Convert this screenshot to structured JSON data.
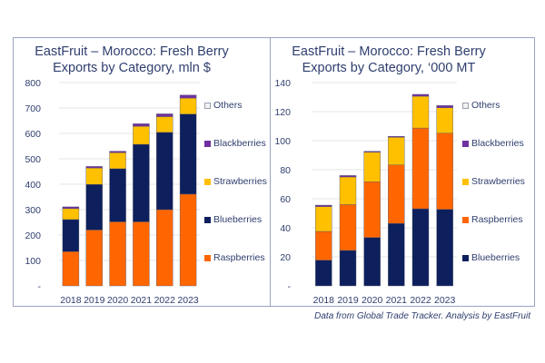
{
  "colors": {
    "Raspberries": "#ff6600",
    "Blueberries": "#0d1f5c",
    "Strawberries": "#ffc000",
    "Blackberries": "#7030a0",
    "Others": "#f2f2f2",
    "text": "#2f3e6e",
    "grid": "#e6e6e6"
  },
  "source_note": "Data from Global Trade Tracker. Analysis by EastFruit",
  "chart_data": [
    {
      "type": "bar",
      "stacked": true,
      "title": "EastFruit – Morocco: Fresh Berry Exports by Category, mln $",
      "title_lines": [
        "EastFruit – Morocco: Fresh Berry",
        "Exports by Category, mln $"
      ],
      "xlabel": "",
      "ylabel": "",
      "categories": [
        "2018",
        "2019",
        "2020",
        "2021",
        "2022",
        "2023"
      ],
      "ylim": [
        0,
        800
      ],
      "yticks": [
        0,
        100,
        200,
        300,
        400,
        500,
        600,
        700,
        800
      ],
      "ytick_labels": [
        "-",
        "100",
        "200",
        "300",
        "400",
        "500",
        "600",
        "700",
        "800"
      ],
      "grid": true,
      "legend_position": "right",
      "legend": [
        "Others",
        "Blackberries",
        "Strawberries",
        "Blueberries",
        "Raspberries"
      ],
      "series": [
        {
          "name": "Raspberries",
          "values": [
            135,
            220,
            252,
            252,
            300,
            361
          ]
        },
        {
          "name": "Blueberries",
          "values": [
            126,
            179,
            209,
            305,
            304,
            315
          ]
        },
        {
          "name": "Strawberries",
          "values": [
            43,
            65,
            63,
            71,
            62,
            63
          ]
        },
        {
          "name": "Blackberries",
          "values": [
            7,
            6,
            6,
            10,
            11,
            12
          ]
        },
        {
          "name": "Others",
          "values": [
            0,
            0,
            0,
            0,
            0,
            0
          ]
        }
      ]
    },
    {
      "type": "bar",
      "stacked": true,
      "title": "EastFruit – Morocco: Fresh Berry Exports by Category, '000 MT",
      "title_lines": [
        "EastFruit – Morocco: Fresh Berry",
        "Exports by Category, ‘000 MT"
      ],
      "xlabel": "",
      "ylabel": "",
      "categories": [
        "2018",
        "2019",
        "2020",
        "2021",
        "2022",
        "2023"
      ],
      "ylim": [
        0,
        140
      ],
      "yticks": [
        0,
        20,
        40,
        60,
        80,
        100,
        120,
        140
      ],
      "ytick_labels": [
        "-",
        "20",
        "40",
        "60",
        "80",
        "100",
        "120",
        "140"
      ],
      "grid": true,
      "legend_position": "right",
      "legend": [
        "Others",
        "Blackberries",
        "Strawberries",
        "Raspberries",
        "Blueberries"
      ],
      "series": [
        {
          "name": "Blueberries",
          "values": [
            17.7,
            24.4,
            33.3,
            43.0,
            53.1,
            52.7
          ]
        },
        {
          "name": "Raspberries",
          "values": [
            19.8,
            31.6,
            38.4,
            40.3,
            55.6,
            52.5
          ]
        },
        {
          "name": "Strawberries",
          "values": [
            17.1,
            19.0,
            20.3,
            19.0,
            21.9,
            17.5
          ]
        },
        {
          "name": "Blackberries",
          "values": [
            1.0,
            1.0,
            0.7,
            0.7,
            1.3,
            1.5
          ]
        },
        {
          "name": "Others",
          "values": [
            0,
            0,
            0,
            0,
            0,
            0
          ]
        }
      ]
    }
  ]
}
